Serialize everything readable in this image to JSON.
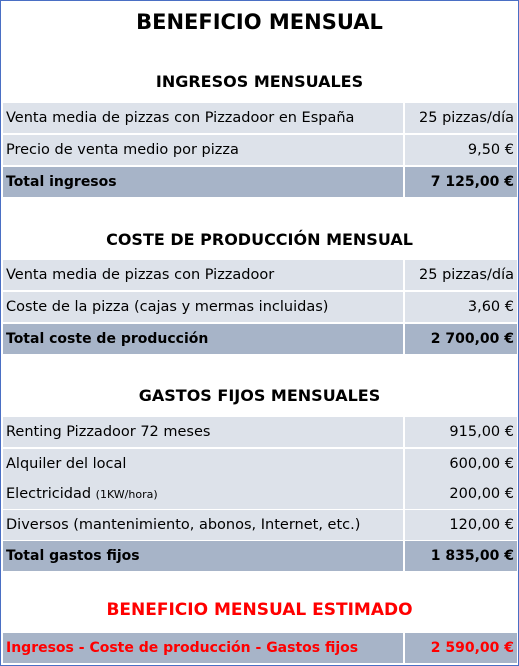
{
  "title": "BENEFICIO MENSUAL",
  "ingresos": {
    "heading": "INGRESOS MENSUALES",
    "rows": [
      {
        "label": "Venta media de pizzas con Pizzadoor en España",
        "value": "25 pizzas/día"
      },
      {
        "label": "Precio de venta medio por pizza",
        "value": "9,50 €"
      }
    ],
    "total": {
      "label": "Total ingresos",
      "value": "7 125,00 €"
    }
  },
  "coste": {
    "heading": "COSTE DE PRODUCCIÓN MENSUAL",
    "rows": [
      {
        "label": "Venta media de pizzas con Pizzadoor",
        "value": "25 pizzas/día"
      },
      {
        "label": "Coste de la pizza (cajas y mermas incluidas)",
        "value": "3,60 €"
      }
    ],
    "total": {
      "label": "Total coste de producción",
      "value": "2 700,00 €"
    }
  },
  "gastos": {
    "heading": "GASTOS FIJOS MENSUALES",
    "rows": [
      {
        "label": "Renting Pizzadoor 72 meses",
        "value": "915,00 €"
      },
      {
        "label": "Alquiler del local",
        "value": "600,00 €"
      },
      {
        "label": "Electricidad",
        "label_suffix": "(1KW/hora)",
        "value": "200,00 €"
      },
      {
        "label": "Diversos (mantenimiento, abonos, Internet, etc.)",
        "value": "120,00 €"
      }
    ],
    "total": {
      "label": "Total gastos fijos",
      "value": "1 835,00 €"
    }
  },
  "beneficio": {
    "heading": "BENEFICIO MENSUAL ESTIMADO",
    "total": {
      "label": "Ingresos - Coste de producción - Gastos fijos",
      "value": "2 590,00 €"
    }
  },
  "colors": {
    "border": "#4a6fc4",
    "row_light": "#dde2ea",
    "row_dark": "#a7b4c8",
    "highlight_red": "#ff0000"
  }
}
